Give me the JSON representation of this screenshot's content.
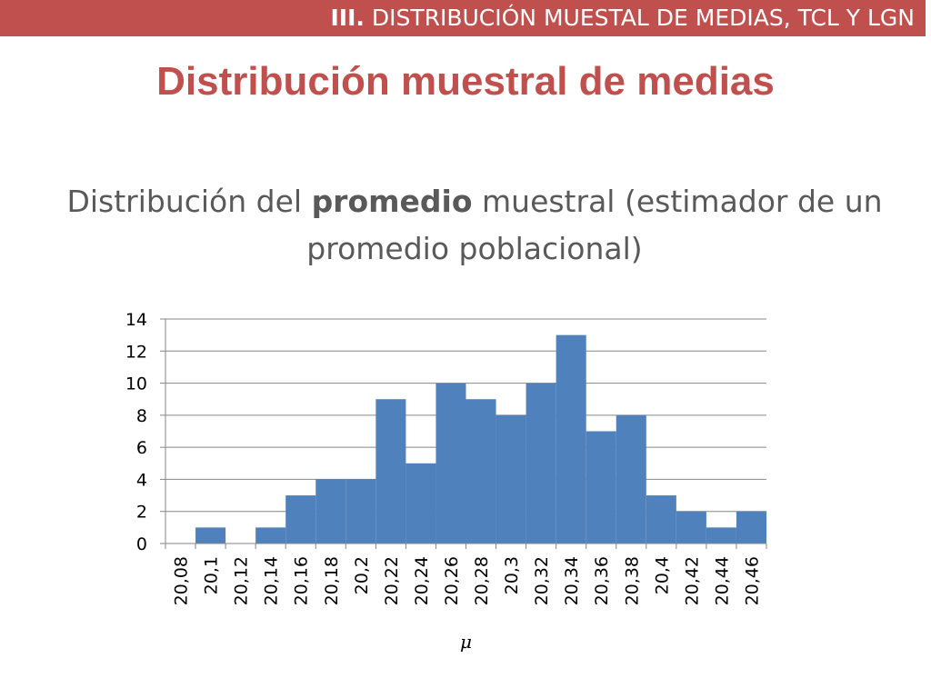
{
  "header": {
    "section_number": "III.",
    "section_title": "DISTRIBUCIÓN MUESTAL DE MEDIAS, TCL Y LGN"
  },
  "title": "Distribución muestral de medias",
  "subtitle": {
    "part1": "Distribución del ",
    "bold": "promedio",
    "part2": " muestral (estimador de un promedio poblacional)"
  },
  "colors": {
    "accent": "#c0504d",
    "bar": "#4f81bd",
    "grid": "#868686"
  },
  "chart_data": {
    "type": "bar",
    "categories": [
      "20,08",
      "20,1",
      "20,12",
      "20,14",
      "20,16",
      "20,18",
      "20,2",
      "20,22",
      "20,24",
      "20,26",
      "20,28",
      "20,3",
      "20,32",
      "20,34",
      "20,36",
      "20,38",
      "20,4",
      "20,42",
      "20,44",
      "20,46"
    ],
    "values": [
      0,
      1,
      0,
      1,
      3,
      4,
      4,
      9,
      5,
      10,
      9,
      8,
      10,
      13,
      7,
      8,
      3,
      2,
      1,
      2
    ],
    "xlabel": "μ",
    "ylabel": "",
    "ylim": [
      0,
      14
    ],
    "yticks": [
      0,
      2,
      4,
      6,
      8,
      10,
      12,
      14
    ],
    "grid": true,
    "legend": "none"
  }
}
